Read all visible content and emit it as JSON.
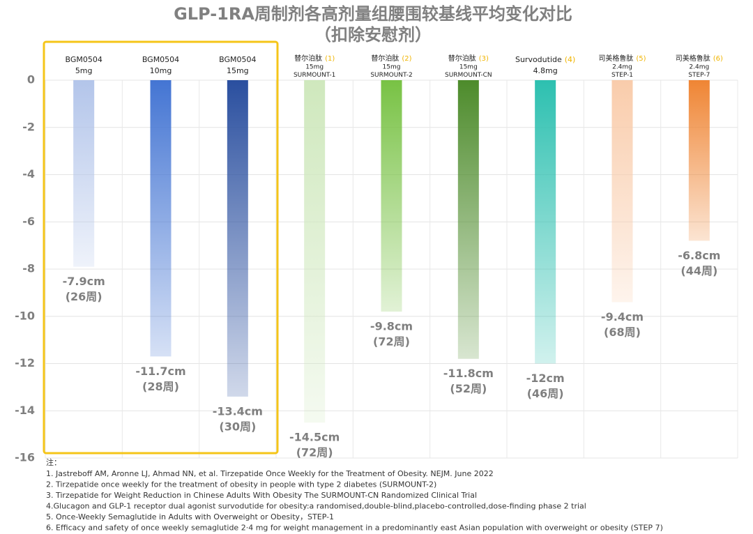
{
  "chart_data": {
    "type": "bar",
    "title": "GLP-1RA周制剂各高剂量组腰围较基线平均变化对比",
    "subtitle": "（扣除安慰剂）",
    "categories": [
      {
        "lines": [
          "BGM0504",
          "5mg"
        ]
      },
      {
        "lines": [
          "BGM0504",
          "10mg"
        ]
      },
      {
        "lines": [
          "BGM0504",
          "15mg"
        ]
      },
      {
        "lines": [
          "替尔泊肽",
          "15mg",
          "SURMOUNT-1"
        ],
        "ref": "(1)"
      },
      {
        "lines": [
          "替尔泊肽",
          "15mg",
          "SURMOUNT-2"
        ],
        "ref": "(2)"
      },
      {
        "lines": [
          "替尔泊肽",
          "15mg",
          "SURMOUNT-CN"
        ],
        "ref": "(3)"
      },
      {
        "lines": [
          "Survodutide",
          "4.8mg"
        ],
        "ref": "(4)"
      },
      {
        "lines": [
          "司美格鲁肽",
          "2.4mg",
          "STEP-1"
        ],
        "ref": "(5)"
      },
      {
        "lines": [
          "司美格鲁肽",
          "2.4mg",
          "STEP-7"
        ],
        "ref": "(6)"
      }
    ],
    "values": [
      -7.9,
      -11.7,
      -13.4,
      -14.5,
      -9.8,
      -11.8,
      -12,
      -9.4,
      -6.8
    ],
    "value_labels": [
      "-7.9cm",
      "-11.7cm",
      "-13.4cm",
      "-14.5cm",
      "-9.8cm",
      "-11.8cm",
      "-12cm",
      "-9.4cm",
      "-6.8cm"
    ],
    "duration_labels": [
      "(26周)",
      "(28周)",
      "(30周)",
      "(72周)",
      "(72周)",
      "(52周)",
      "(46周)",
      "(68周)",
      "(44周)"
    ],
    "colors": [
      "#b3c5ea",
      "#4475d3",
      "#2a4f9f",
      "#cfe8bd",
      "#78c244",
      "#4d8b2b",
      "#2dc0b0",
      "#f9ccab",
      "#ef8534"
    ],
    "ref_color": "#f0b400",
    "highlight_color": "#f5c518",
    "ylim": [
      0,
      -16
    ],
    "yticks": [
      0,
      -2,
      -4,
      -6,
      -8,
      -10,
      -12,
      -14,
      -16
    ],
    "grid": true
  },
  "notes": {
    "heading": "注：",
    "items": [
      "1. Jastreboff AM, Aronne LJ, Ahmad NN, et al. Tirzepatide Once Weekly for the Treatment of Obesity. NEJM. June 2022",
      "2. Tirzepatide once weekly for the treatment of obesity in people with type 2 diabetes (SURMOUNT-2)",
      "3. Tirzepatide for Weight Reduction in Chinese Adults With Obesity The SURMOUNT-CN Randomized Clinical Trial",
      "4.Glucagon and GLP-1 receptor dual agonist survodutide for obesity:a randomised,double-blind,placebo-controlled,dose-finding phase 2 trial",
      "5. Once-Weekly Semaglutide in Adults with Overweight or Obesity，STEP-1",
      "6. Efficacy and safety of once weekly semaglutide 2·4 mg for weight management in a predominantly east Asian population with overweight or obesity (STEP 7)"
    ]
  }
}
